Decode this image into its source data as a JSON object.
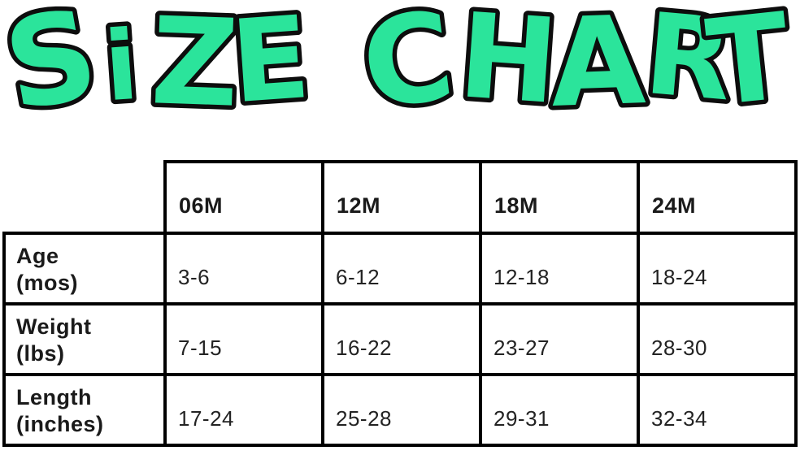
{
  "title": {
    "text": "SiZE CHART",
    "fill_color": "#2be49b",
    "outline_color": "#0d0d0d"
  },
  "table": {
    "corner_label": "",
    "columns": [
      "06M",
      "12M",
      "18M",
      "24M"
    ],
    "rows": [
      {
        "label": "Age",
        "unit": "(mos)",
        "values": [
          "3-6",
          "6-12",
          "12-18",
          "18-24"
        ]
      },
      {
        "label": "Weight",
        "unit": "(lbs)",
        "values": [
          "7-15",
          "16-22",
          "23-27",
          "28-30"
        ]
      },
      {
        "label": "Length",
        "unit": "(inches)",
        "values": [
          "17-24",
          "25-28",
          "29-31",
          "32-34"
        ]
      }
    ]
  },
  "colors": {
    "background": "#ffffff",
    "grid_line": "#000000",
    "text": "#1a1a1a"
  },
  "chart_data": {
    "type": "table",
    "title": "SIZE CHART",
    "columns": [
      "",
      "06M",
      "12M",
      "18M",
      "24M"
    ],
    "rows": [
      [
        "Age (mos)",
        "3-6",
        "6-12",
        "12-18",
        "18-24"
      ],
      [
        "Weight (lbs)",
        "7-15",
        "16-22",
        "23-27",
        "28-30"
      ],
      [
        "Length (inches)",
        "17-24",
        "25-28",
        "29-31",
        "32-34"
      ]
    ],
    "layout_hints": {
      "header_row_corner_cell_borderless": true,
      "grid_on": true,
      "title_style": "green bubble letters with black outline"
    }
  }
}
